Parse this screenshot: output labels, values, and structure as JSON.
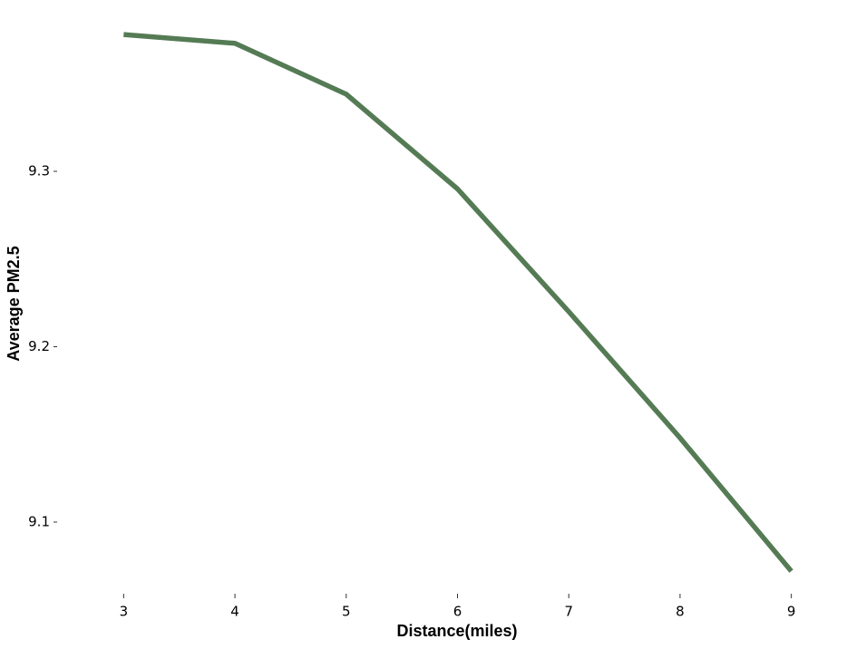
{
  "chart_data": {
    "type": "line",
    "x_label": "Distance(miles)",
    "y_label": "Average PM2.5",
    "x": [
      3,
      4,
      5,
      6,
      7,
      8,
      9
    ],
    "series": [
      {
        "color": "#557b55",
        "values": [
          9.378,
          9.373,
          9.344,
          9.29,
          9.22,
          9.148,
          9.072
        ]
      }
    ],
    "xlim": [
      2.5,
      9.5
    ],
    "xticks": [
      3,
      4,
      5,
      6,
      7,
      8,
      9
    ],
    "ylim": [
      9.062,
      9.387
    ],
    "yticks": [
      9.1,
      9.2,
      9.3
    ],
    "grid": false
  }
}
